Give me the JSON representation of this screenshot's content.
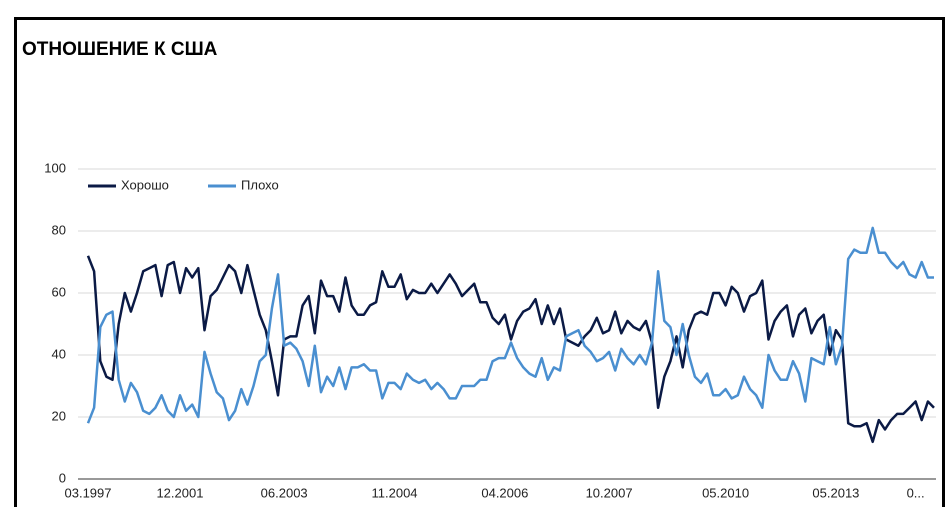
{
  "chart_data": {
    "type": "line",
    "title": "ОТНОШЕНИЕ К США",
    "categories": [
      "03.1997",
      null,
      null,
      null,
      null,
      null,
      null,
      null,
      null,
      null,
      null,
      null,
      null,
      null,
      null,
      "12.2001",
      null,
      null,
      null,
      null,
      null,
      null,
      null,
      null,
      null,
      null,
      null,
      null,
      null,
      null,
      null,
      null,
      "06.2003",
      null,
      null,
      null,
      null,
      null,
      null,
      null,
      null,
      null,
      null,
      null,
      null,
      null,
      null,
      null,
      null,
      null,
      "11.2004",
      null,
      null,
      null,
      null,
      null,
      null,
      null,
      null,
      null,
      null,
      null,
      null,
      null,
      null,
      null,
      null,
      null,
      "04.2006",
      null,
      null,
      null,
      null,
      null,
      null,
      null,
      null,
      null,
      null,
      null,
      null,
      null,
      null,
      null,
      null,
      "10.2007",
      null,
      null,
      null,
      null,
      null,
      null,
      null,
      null,
      null,
      null,
      null,
      null,
      null,
      null,
      null,
      null,
      null,
      null,
      "05.2010",
      null,
      null,
      null,
      null,
      null,
      null,
      null,
      null,
      null,
      null,
      null,
      null,
      null,
      null,
      null,
      null,
      null,
      "05.2013",
      null,
      null,
      null,
      null,
      null,
      null,
      null,
      null,
      null,
      null,
      null,
      null,
      "0...",
      null,
      null,
      null
    ],
    "series": [
      {
        "name": "Хорошо",
        "color": "#0b1a45",
        "values": [
          72,
          67,
          38,
          33,
          32,
          50,
          60,
          54,
          60,
          67,
          68,
          69,
          59,
          69,
          70,
          60,
          68,
          65,
          68,
          48,
          59,
          61,
          65,
          69,
          67,
          60,
          69,
          61,
          53,
          48,
          38,
          27,
          45,
          46,
          46,
          56,
          59,
          47,
          64,
          59,
          59,
          54,
          65,
          56,
          53,
          53,
          56,
          57,
          67,
          62,
          62,
          66,
          58,
          61,
          60,
          60,
          63,
          60,
          63,
          66,
          63,
          59,
          61,
          63,
          57,
          57,
          52,
          50,
          53,
          45,
          51,
          54,
          55,
          58,
          50,
          56,
          50,
          55,
          45,
          44,
          43,
          46,
          48,
          52,
          47,
          48,
          54,
          47,
          51,
          49,
          48,
          51,
          44,
          23,
          33,
          38,
          46,
          36,
          48,
          53,
          54,
          53,
          60,
          60,
          56,
          62,
          60,
          54,
          59,
          60,
          64,
          45,
          51,
          54,
          56,
          46,
          53,
          55,
          47,
          51,
          53,
          40,
          48,
          45,
          18,
          17,
          17,
          18,
          12,
          19,
          16,
          19,
          21,
          21,
          23,
          25,
          19,
          25,
          23
        ]
      },
      {
        "name": "Плохо",
        "color": "#4a8fd0",
        "values": [
          18,
          23,
          49,
          53,
          54,
          32,
          25,
          31,
          28,
          22,
          21,
          23,
          27,
          22,
          20,
          27,
          22,
          24,
          20,
          41,
          34,
          28,
          26,
          19,
          22,
          29,
          24,
          30,
          38,
          40,
          55,
          66,
          43,
          44,
          42,
          38,
          30,
          43,
          28,
          33,
          30,
          36,
          29,
          36,
          36,
          37,
          35,
          35,
          26,
          31,
          31,
          29,
          34,
          32,
          31,
          32,
          29,
          31,
          29,
          26,
          26,
          30,
          30,
          30,
          32,
          32,
          38,
          39,
          39,
          44,
          39,
          36,
          34,
          33,
          39,
          32,
          36,
          35,
          46,
          47,
          48,
          43,
          41,
          38,
          39,
          41,
          35,
          42,
          39,
          37,
          40,
          37,
          44,
          67,
          51,
          49,
          40,
          50,
          40,
          33,
          31,
          34,
          27,
          27,
          29,
          26,
          27,
          33,
          29,
          27,
          23,
          40,
          35,
          32,
          32,
          38,
          34,
          25,
          39,
          38,
          37,
          49,
          37,
          43,
          71,
          74,
          73,
          73,
          81,
          73,
          73,
          70,
          68,
          70,
          66,
          65,
          70,
          65,
          65
        ]
      }
    ],
    "ylim": [
      0,
      100
    ],
    "yticks": [
      0,
      20,
      40,
      60,
      80,
      100
    ],
    "grid": true,
    "legend": "top-left"
  }
}
